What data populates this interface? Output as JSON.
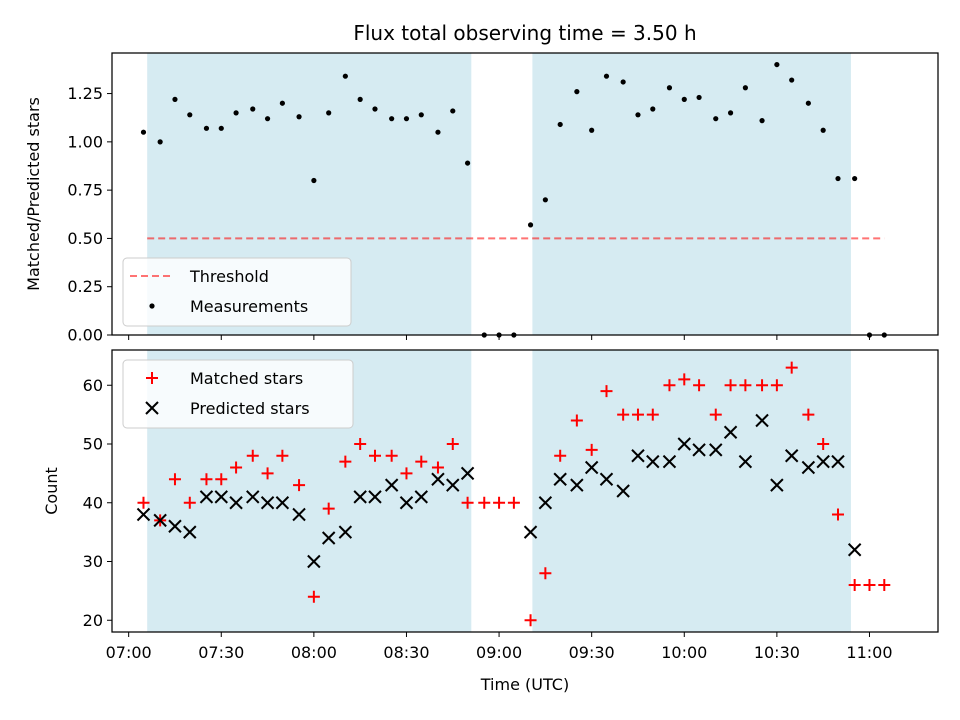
{
  "title": "Flux total observing time = 3.50 h",
  "colors": {
    "shade": "#add8e6",
    "threshold": "#ff0000",
    "measurement": "#000000",
    "matched": "#ff0000",
    "predicted": "#000000",
    "axis": "#000000"
  },
  "chart_data": [
    {
      "type": "scatter",
      "ylabel": "Matched/Predicted stars",
      "ylim": [
        0,
        1.46
      ],
      "yticks": [
        0,
        0.25,
        0.5,
        0.75,
        1.0,
        1.25
      ],
      "ytick_labels": [
        "0.00",
        "0.25",
        "0.50",
        "0.75",
        "1.00",
        "1.25"
      ],
      "xlim": [
        6.91,
        11.37
      ],
      "xticks": [
        7.0,
        7.5,
        8.0,
        8.5,
        9.0,
        9.5,
        10.0,
        10.5,
        11.0
      ],
      "shaded_intervals": [
        [
          7.1,
          8.85
        ],
        [
          9.18,
          10.9
        ]
      ],
      "threshold": {
        "label": "Threshold",
        "y": 0.5,
        "x_range": [
          7.1,
          11.08
        ]
      },
      "legend_position": "lower-left",
      "series": [
        {
          "name": "Measurements",
          "x": [
            7.08,
            7.17,
            7.25,
            7.33,
            7.42,
            7.5,
            7.58,
            7.67,
            7.75,
            7.83,
            7.92,
            8.0,
            8.08,
            8.17,
            8.25,
            8.33,
            8.42,
            8.5,
            8.58,
            8.67,
            8.75,
            8.83,
            8.92,
            9.0,
            9.08,
            9.17,
            9.25,
            9.33,
            9.42,
            9.5,
            9.58,
            9.67,
            9.75,
            9.83,
            9.92,
            10.0,
            10.08,
            10.17,
            10.25,
            10.33,
            10.42,
            10.5,
            10.58,
            10.67,
            10.75,
            10.83,
            10.92,
            11.0,
            11.08
          ],
          "y": [
            1.05,
            1.0,
            1.22,
            1.14,
            1.07,
            1.07,
            1.15,
            1.17,
            1.12,
            1.2,
            1.13,
            0.8,
            1.15,
            1.34,
            1.22,
            1.17,
            1.12,
            1.12,
            1.14,
            1.05,
            1.16,
            0.89,
            0.0,
            0.0,
            0.0,
            0.57,
            0.7,
            1.09,
            1.26,
            1.06,
            1.34,
            1.31,
            1.14,
            1.17,
            1.28,
            1.22,
            1.23,
            1.12,
            1.15,
            1.28,
            1.11,
            1.4,
            1.32,
            1.2,
            1.06,
            0.81,
            0.81,
            0.0,
            0.0
          ]
        }
      ]
    },
    {
      "type": "scatter",
      "ylabel": "Count",
      "xlabel": "Time (UTC)",
      "ylim": [
        18,
        66
      ],
      "yticks": [
        20,
        30,
        40,
        50,
        60
      ],
      "ytick_labels": [
        "20",
        "30",
        "40",
        "50",
        "60"
      ],
      "xlim": [
        6.91,
        11.37
      ],
      "xticks": [
        7.0,
        7.5,
        8.0,
        8.5,
        9.0,
        9.5,
        10.0,
        10.5,
        11.0
      ],
      "xtick_labels": [
        "07:00",
        "07:30",
        "08:00",
        "08:30",
        "09:00",
        "09:30",
        "10:00",
        "10:30",
        "11:00"
      ],
      "shaded_intervals": [
        [
          7.1,
          8.85
        ],
        [
          9.18,
          10.9
        ]
      ],
      "legend_position": "top-left",
      "series": [
        {
          "name": "Matched stars",
          "marker": "plus",
          "x": [
            7.08,
            7.17,
            7.25,
            7.33,
            7.42,
            7.5,
            7.58,
            7.67,
            7.75,
            7.83,
            7.92,
            8.0,
            8.08,
            8.17,
            8.25,
            8.33,
            8.42,
            8.5,
            8.58,
            8.67,
            8.75,
            8.83,
            8.92,
            9.0,
            9.08,
            9.17,
            9.25,
            9.33,
            9.42,
            9.5,
            9.58,
            9.67,
            9.75,
            9.83,
            9.92,
            10.0,
            10.08,
            10.17,
            10.25,
            10.33,
            10.42,
            10.5,
            10.58,
            10.67,
            10.75,
            10.83,
            10.92,
            11.0,
            11.08
          ],
          "y": [
            40,
            37,
            44,
            40,
            44,
            44,
            46,
            48,
            45,
            48,
            43,
            24,
            39,
            47,
            50,
            48,
            48,
            45,
            47,
            46,
            50,
            40,
            40,
            40,
            40,
            20,
            28,
            48,
            54,
            49,
            59,
            55,
            55,
            55,
            60,
            61,
            60,
            55,
            60,
            60,
            60,
            60,
            63,
            55,
            50,
            38,
            26,
            26,
            26
          ]
        },
        {
          "name": "Predicted stars",
          "marker": "x",
          "x": [
            7.08,
            7.17,
            7.25,
            7.33,
            7.42,
            7.5,
            7.58,
            7.67,
            7.75,
            7.83,
            7.92,
            8.0,
            8.08,
            8.17,
            8.25,
            8.33,
            8.42,
            8.5,
            8.58,
            8.67,
            8.75,
            8.83,
            9.17,
            9.25,
            9.33,
            9.42,
            9.5,
            9.58,
            9.67,
            9.75,
            9.83,
            9.92,
            10.0,
            10.08,
            10.17,
            10.25,
            10.33,
            10.42,
            10.5,
            10.58,
            10.67,
            10.75,
            10.83,
            10.92
          ],
          "y": [
            38,
            37,
            36,
            35,
            41,
            41,
            40,
            41,
            40,
            40,
            38,
            30,
            34,
            35,
            41,
            41,
            43,
            40,
            41,
            44,
            43,
            45,
            35,
            40,
            44,
            43,
            46,
            44,
            42,
            48,
            47,
            47,
            50,
            49,
            49,
            52,
            47,
            54,
            43,
            48,
            46,
            47,
            47,
            32
          ]
        }
      ]
    }
  ]
}
